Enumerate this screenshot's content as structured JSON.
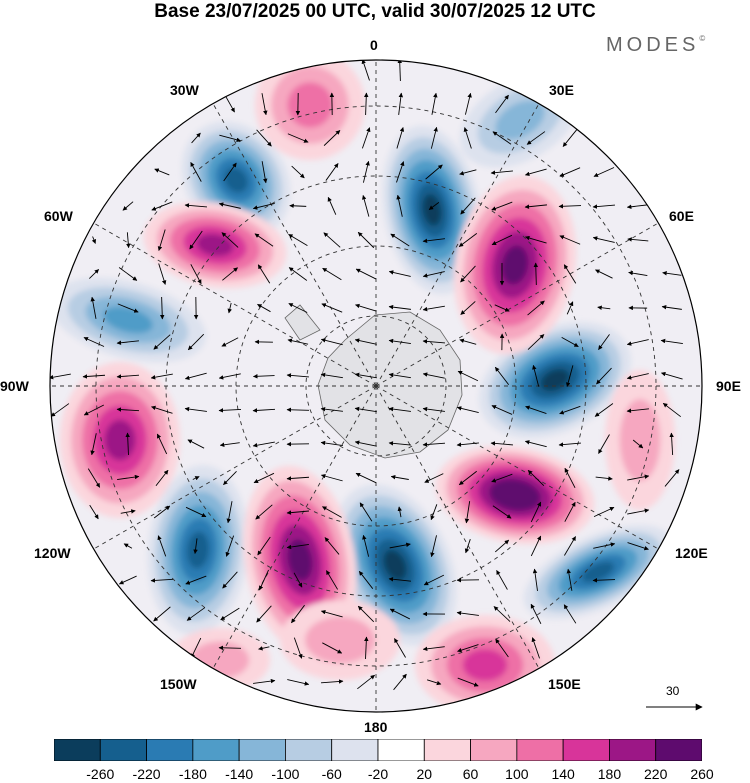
{
  "title": "Base 23/07/2025 00 UTC, valid 30/07/2025 12 UTC",
  "brand": "MODES",
  "brand_mark": "©",
  "longitude_labels": [
    "0",
    "30E",
    "60E",
    "90E",
    "120E",
    "150E",
    "180",
    "150W",
    "120W",
    "90W",
    "60W",
    "30W"
  ],
  "reference_vector": "30",
  "colorbar": {
    "ticks": [
      "-260",
      "-220",
      "-180",
      "-140",
      "-100",
      "-60",
      "-20",
      "20",
      "60",
      "100",
      "140",
      "180",
      "220",
      "260"
    ],
    "colors": [
      "#0b3d5c",
      "#155f8e",
      "#2a7bb3",
      "#4f9cc8",
      "#86b6d8",
      "#b7cde3",
      "#dde2ee",
      "#ffffff",
      "#fbd6dd",
      "#f6a7c0",
      "#ee6fa6",
      "#d8349a",
      "#9c1786",
      "#5e0b6e"
    ]
  }
}
